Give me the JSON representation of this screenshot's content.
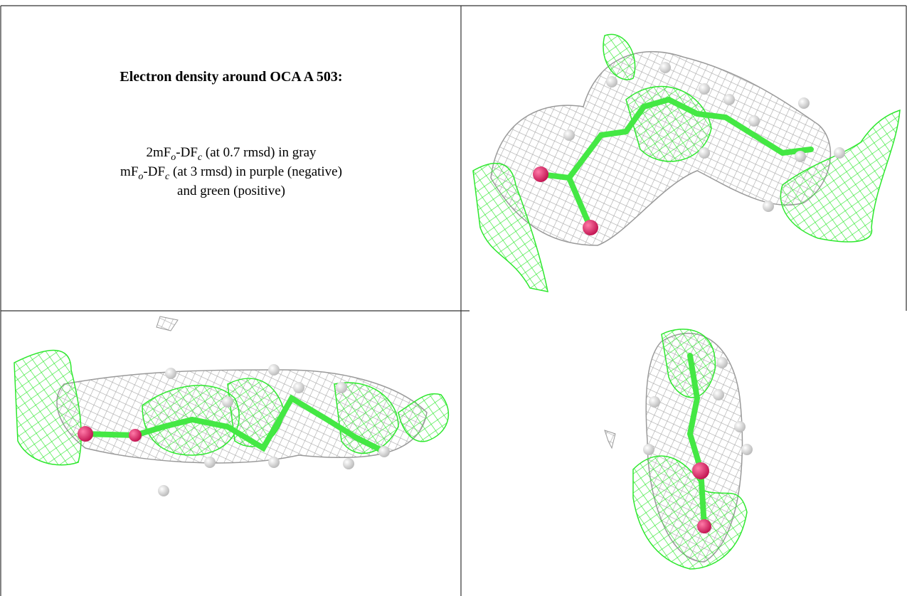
{
  "title": "Electron density around OCA A 503:",
  "caption_lines": [
    [
      "2mF",
      "o",
      "-DF",
      "c",
      " (at 0.7 rmsd) in gray"
    ],
    [
      "mF",
      "o",
      "-DF",
      "c",
      " (at 3 rmsd) in purple (negative)"
    ],
    [
      "and green (positive)"
    ]
  ]
}
